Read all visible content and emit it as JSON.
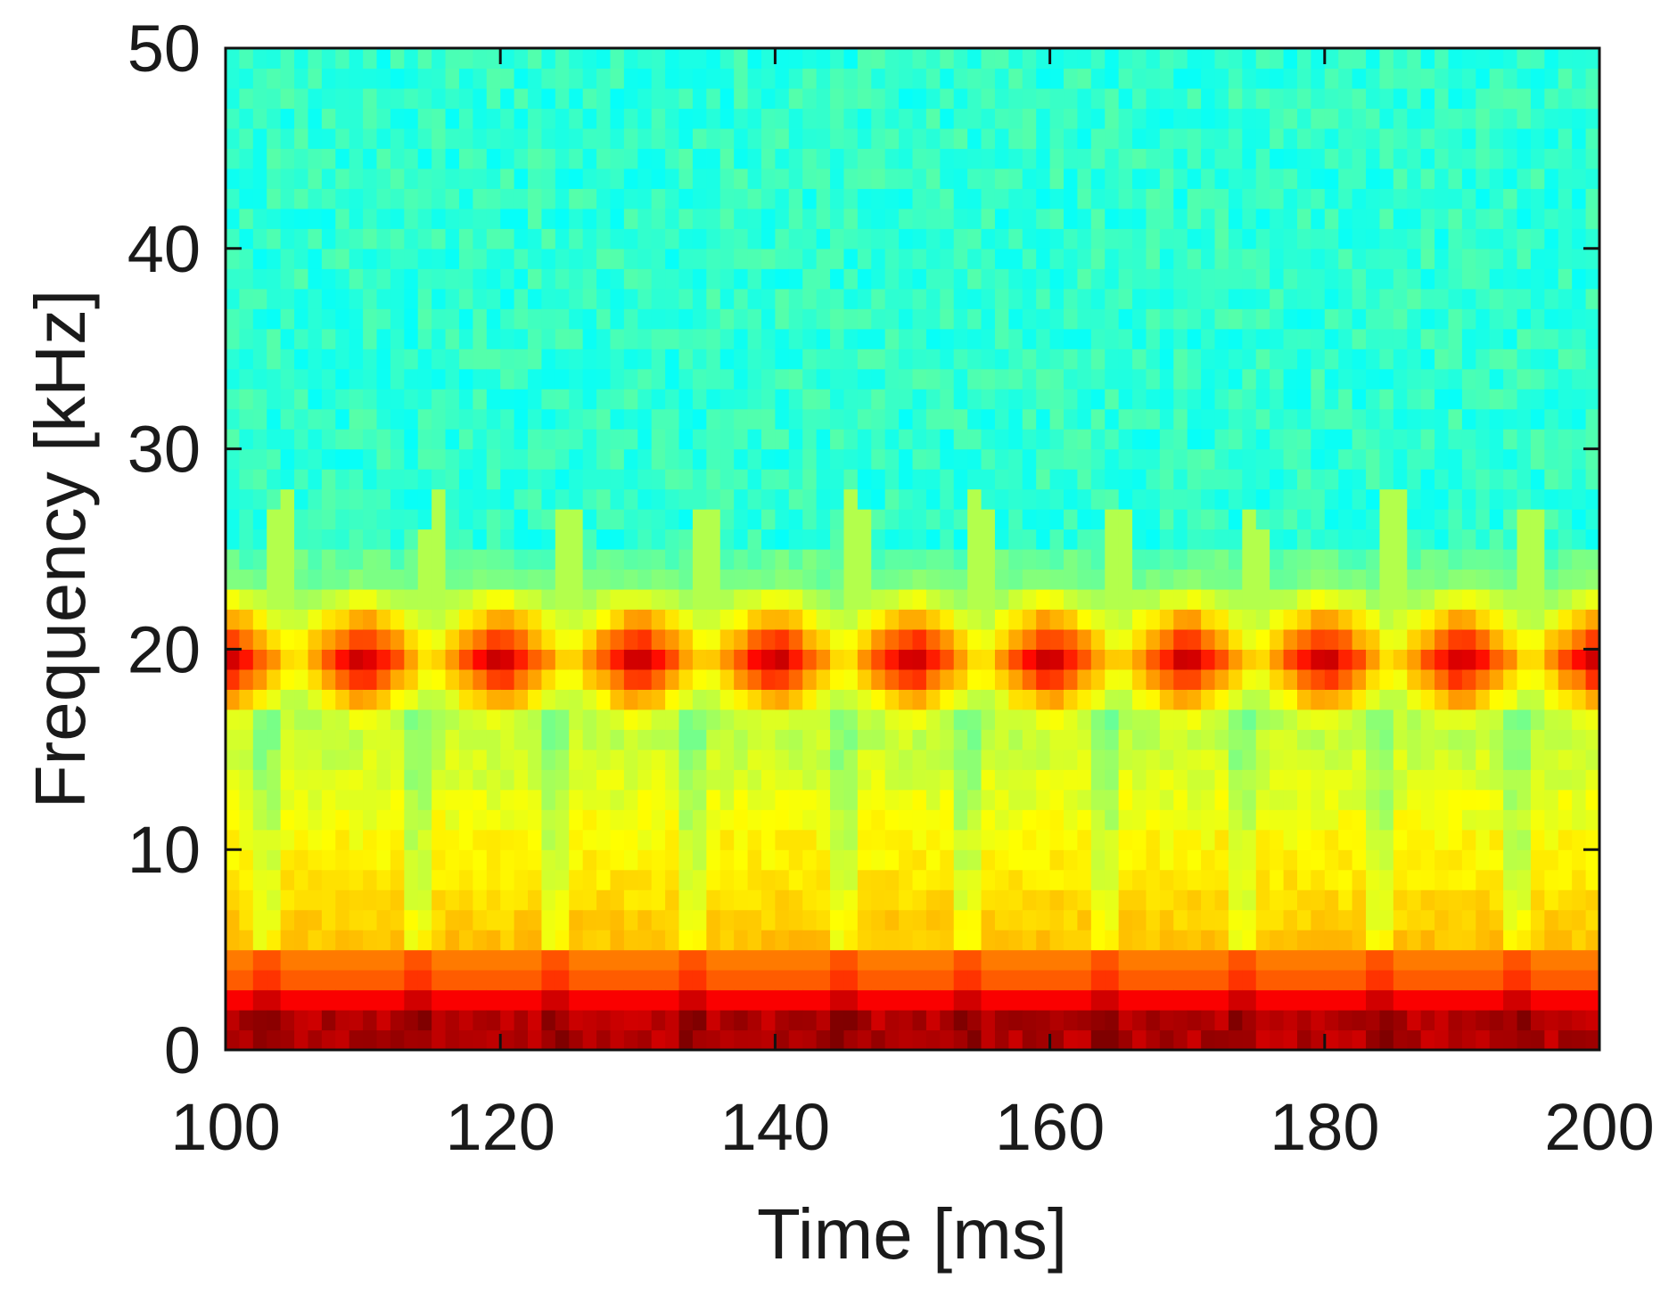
{
  "chart_data": {
    "type": "heatmap",
    "title": "",
    "xlabel": "Time [ms]",
    "ylabel": "Frequency [kHz]",
    "xlim": [
      100,
      200
    ],
    "ylim": [
      0,
      50
    ],
    "x_ticks": [
      100,
      120,
      140,
      160,
      180,
      200
    ],
    "y_ticks": [
      0,
      10,
      20,
      30,
      40,
      50
    ],
    "colormap": "jet",
    "grid": false,
    "time_bin_ms": 1,
    "freq_bin_khz": 1,
    "harmonic_frequency_khz": 20,
    "harmonic_pulse_centers_ms": [
      100,
      110,
      120,
      130,
      140,
      150,
      160,
      170,
      180,
      190,
      200
    ],
    "transient_streaks_ms": [
      104,
      115,
      125,
      135,
      146,
      155,
      165,
      175,
      185,
      195
    ],
    "colors": {
      "low": "#00c8ff",
      "mid": "#00e878",
      "high_mid": "#ffff00",
      "high": "#ff2a00",
      "max": "#a00000"
    }
  }
}
